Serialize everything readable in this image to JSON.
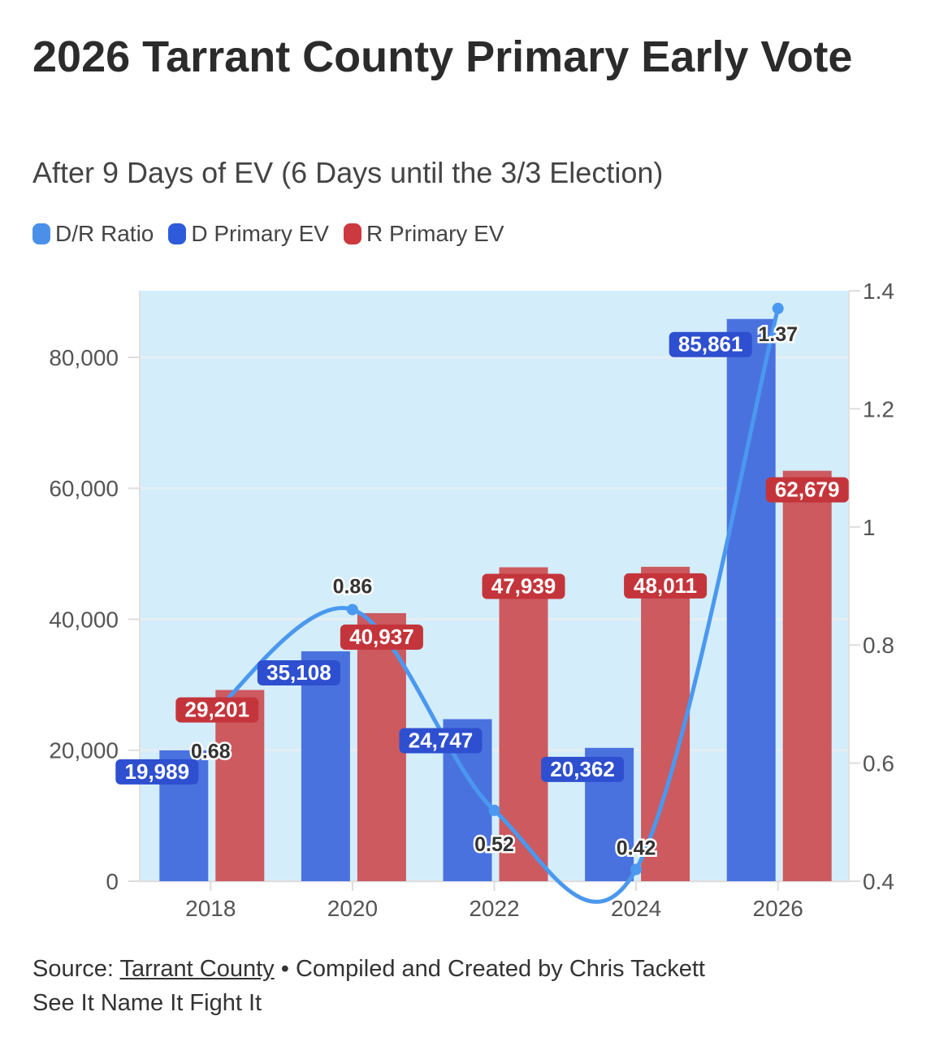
{
  "header": {
    "title": "2026 Tarrant County Primary Early Vote",
    "subtitle": "After 9 Days of EV (6 Days until the 3/3 Election)"
  },
  "legend": [
    {
      "label": "D/R Ratio",
      "color": "#4a90e8"
    },
    {
      "label": "D Primary EV",
      "color": "#2e5bd9"
    },
    {
      "label": "R Primary EV",
      "color": "#cc3a3f"
    }
  ],
  "chart_data": {
    "type": "bar",
    "title": "2026 Tarrant County Primary Early Vote",
    "categories": [
      "2018",
      "2020",
      "2022",
      "2024",
      "2026"
    ],
    "series": [
      {
        "name": "D Primary EV",
        "type": "bar",
        "axis": "left",
        "color": "#4a72df",
        "values": [
          19989,
          35108,
          24747,
          20362,
          85861
        ],
        "labels": [
          "19,989",
          "35,108",
          "24,747",
          "20,362",
          "85,861"
        ]
      },
      {
        "name": "R Primary EV",
        "type": "bar",
        "axis": "left",
        "color": "#cc5a5f",
        "values": [
          29201,
          40937,
          47939,
          48011,
          62679
        ],
        "labels": [
          "29,201",
          "40,937",
          "47,939",
          "48,011",
          "62,679"
        ]
      },
      {
        "name": "D/R Ratio",
        "type": "line",
        "axis": "right",
        "color": "#4a98ef",
        "values": [
          0.68,
          0.86,
          0.52,
          0.42,
          1.37
        ],
        "labels": [
          "0.68",
          "0.86",
          "0.52",
          "0.42",
          "1.37"
        ]
      }
    ],
    "ylim": [
      0,
      90170
    ],
    "yticks": [
      0,
      20000,
      40000,
      60000,
      80000
    ],
    "ytick_labels": [
      "0",
      "20,000",
      "40,000",
      "60,000",
      "80,000"
    ],
    "y2lim": [
      0.4,
      1.4
    ],
    "y2ticks": [
      0.4,
      0.6,
      0.8,
      1,
      1.2,
      1.4
    ],
    "y2tick_labels": [
      "0.4",
      "0.6",
      "0.8",
      "1",
      "1.2",
      "1.4"
    ],
    "grid": true,
    "legend_position": "top-left",
    "plot_background": "#d3edfb"
  },
  "footer": {
    "source_prefix": "Source: ",
    "source_link": "Tarrant County",
    "credit": " • Compiled and Created by Chris Tackett",
    "tagline": "See It Name It Fight It"
  }
}
